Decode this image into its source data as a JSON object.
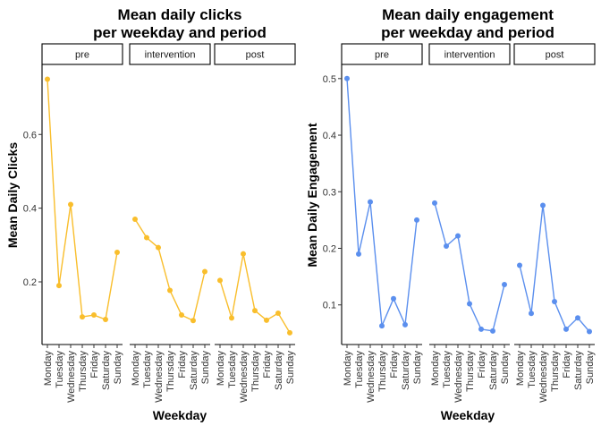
{
  "chart_data": [
    {
      "type": "line",
      "title_lines": [
        "Mean daily clicks",
        "per weekday and period"
      ],
      "xlabel": "Weekday",
      "ylabel": "Mean Daily Clicks",
      "color": "#F9BE2C",
      "facets": [
        "pre",
        "intervention",
        "post"
      ],
      "categories": [
        "Monday",
        "Tuesday",
        "Wednesday",
        "Thursday",
        "Friday",
        "Saturday",
        "Sunday"
      ],
      "y_ticks": [
        "0.2",
        "0.4",
        "0.6"
      ],
      "y_tick_values": [
        0.2,
        0.4,
        0.6
      ],
      "ylim": [
        0.03,
        0.79
      ],
      "series": [
        {
          "values": [
            0.75,
            0.19,
            0.41,
            0.105,
            0.11,
            0.098,
            0.28
          ]
        },
        {
          "values": [
            0.37,
            0.32,
            0.293,
            0.177,
            0.11,
            0.095,
            0.228
          ]
        },
        {
          "values": [
            0.204,
            0.102,
            0.276,
            0.122,
            0.096,
            0.115,
            0.062
          ]
        }
      ]
    },
    {
      "type": "line",
      "title_lines": [
        "Mean daily engagement",
        "per weekday and period"
      ],
      "xlabel": "Weekday",
      "ylabel": "Mean Daily Engagement",
      "color": "#5B8FEE",
      "facets": [
        "pre",
        "intervention",
        "post"
      ],
      "categories": [
        "Monday",
        "Tuesday",
        "Wednesday",
        "Thursday",
        "Friday",
        "Saturday",
        "Sunday"
      ],
      "y_ticks": [
        "0.1",
        "0.2",
        "0.3",
        "0.4",
        "0.5"
      ],
      "y_tick_values": [
        0.1,
        0.2,
        0.3,
        0.4,
        0.5
      ],
      "ylim": [
        0.03,
        0.525
      ],
      "series": [
        {
          "values": [
            0.5,
            0.19,
            0.282,
            0.063,
            0.111,
            0.065,
            0.25
          ]
        },
        {
          "values": [
            0.28,
            0.204,
            0.222,
            0.102,
            0.057,
            0.054,
            0.136
          ]
        },
        {
          "values": [
            0.17,
            0.085,
            0.276,
            0.106,
            0.057,
            0.077,
            0.053
          ]
        }
      ]
    }
  ]
}
